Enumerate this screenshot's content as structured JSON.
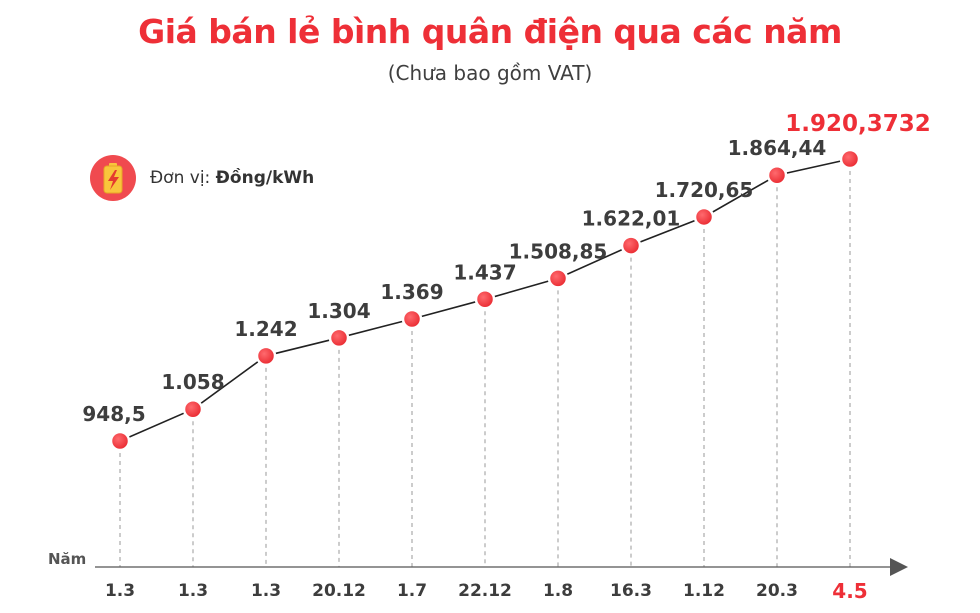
{
  "title": "Giá bán lẻ bình quân điện qua các năm",
  "subtitle": "(Chưa bao gồm VAT)",
  "unit": {
    "label": "Đơn vị: ",
    "value": "Đồng/kWh",
    "icon": "battery-lightning-icon"
  },
  "colors": {
    "accent": "#ee2f37",
    "point": "#ee3a3f",
    "line": "#222222",
    "text": "#3d3d3d"
  },
  "chart_data": {
    "type": "line",
    "title": "Giá bán lẻ bình quân điện qua các năm",
    "subtitle": "(Chưa bao gồm VAT)",
    "xlabel": "Năm",
    "ylabel": "",
    "unit": "Đồng/kWh",
    "grid": false,
    "categories": [
      "1.3",
      "1.3",
      "1.3",
      "20.12",
      "1.7",
      "22.12",
      "1.8",
      "16.3",
      "1.12",
      "20.3",
      "4.5"
    ],
    "labels": [
      "948,5",
      "1.058",
      "1.242",
      "1.304",
      "1.369",
      "1.437",
      "1.508,85",
      "1.622,01",
      "1.720,65",
      "1.864,44",
      "1.920,3732"
    ],
    "values": [
      948.5,
      1058,
      1242,
      1304,
      1369,
      1437,
      1508.85,
      1622.01,
      1720.65,
      1864.44,
      1920.3732
    ],
    "highlight_index": 10
  }
}
